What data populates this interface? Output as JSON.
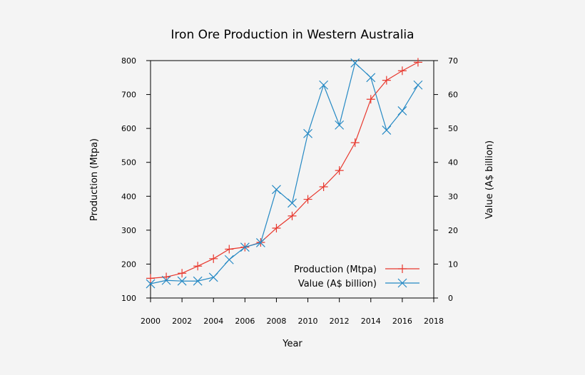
{
  "chart_data": {
    "type": "line",
    "title": "Iron Ore Production in Western Australia",
    "xlabel": "Year",
    "ylabel_left": "Production (Mtpa)",
    "ylabel_right": "Value (A$ billion)",
    "xlim": [
      2000,
      2018
    ],
    "ylim_left": [
      100,
      800
    ],
    "ylim_right": [
      0,
      70
    ],
    "x_ticks": [
      2000,
      2002,
      2004,
      2006,
      2008,
      2010,
      2012,
      2014,
      2016,
      2018
    ],
    "y_left_ticks": [
      100,
      200,
      300,
      400,
      500,
      600,
      700,
      800
    ],
    "y_right_ticks": [
      0,
      10,
      20,
      30,
      40,
      50,
      60,
      70
    ],
    "grid": false,
    "legend_position": "bottom-right",
    "series": [
      {
        "name": "Production (Mtpa)",
        "axis": "left",
        "marker": "plus",
        "color": "#e8382e",
        "x": [
          2000,
          2001,
          2002,
          2003,
          2004,
          2005,
          2006,
          2007,
          2008,
          2009,
          2010,
          2011,
          2012,
          2013,
          2014,
          2015,
          2016,
          2017
        ],
        "values": [
          158,
          162,
          173,
          194,
          216,
          244,
          250,
          264,
          306,
          342,
          391,
          428,
          476,
          558,
          686,
          742,
          770,
          795
        ]
      },
      {
        "name": "Value (A$ billion)",
        "axis": "right",
        "marker": "cross",
        "color": "#2589c4",
        "x": [
          2000,
          2001,
          2002,
          2003,
          2004,
          2005,
          2006,
          2007,
          2008,
          2009,
          2010,
          2011,
          2012,
          2013,
          2014,
          2015,
          2016,
          2017
        ],
        "values": [
          4.2,
          5.2,
          5.0,
          5.0,
          6.1,
          11.3,
          15.0,
          16.3,
          32.0,
          28.0,
          48.5,
          62.8,
          51.0,
          69.3,
          65.0,
          49.5,
          55.2,
          62.8
        ]
      }
    ]
  }
}
